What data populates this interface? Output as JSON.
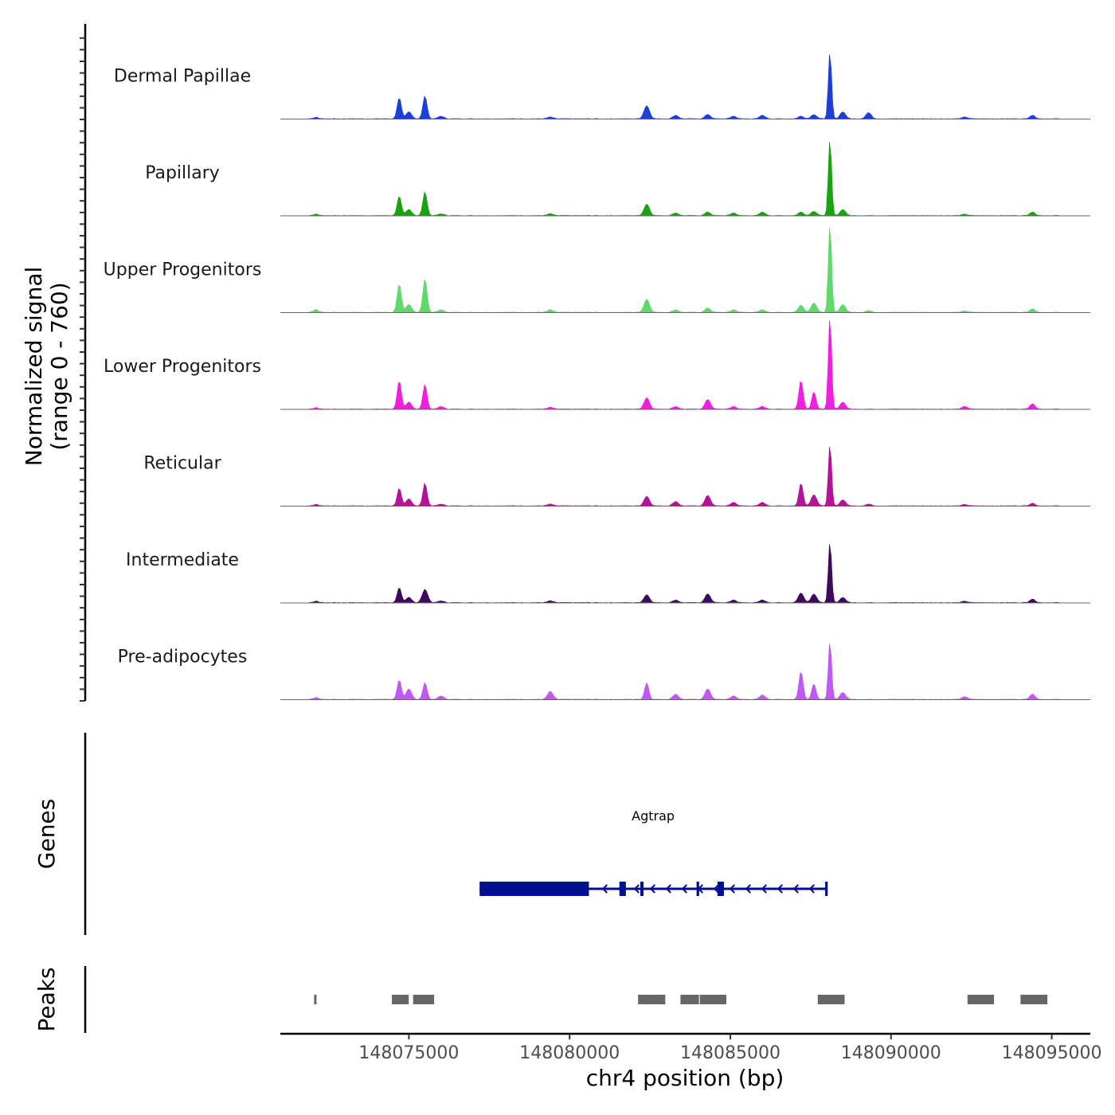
{
  "chart_data": {
    "type": "area",
    "title": "",
    "region": {
      "chromosome": "chr4",
      "start": 148071000,
      "end": 148096200
    },
    "signal_axis": {
      "label": "Normalized signal",
      "range_label": "(range 0 - 760)",
      "ylim": [
        0,
        760
      ]
    },
    "xlabel": "chr4 position (bp)",
    "x_ticks": [
      {
        "value": 148075000,
        "label": "148075000"
      },
      {
        "value": 148080000,
        "label": "148080000"
      },
      {
        "value": 148085000,
        "label": "148085000"
      },
      {
        "value": 148090000,
        "label": "148090000"
      },
      {
        "value": 148095000,
        "label": "148095000"
      }
    ],
    "peak_profile": [
      [
        148072100,
        0.015
      ],
      [
        148074700,
        0.2
      ],
      [
        148075000,
        0.06
      ],
      [
        148075500,
        0.25
      ],
      [
        148076000,
        0.03
      ],
      [
        148079400,
        0.02
      ],
      [
        148082400,
        0.13
      ],
      [
        148083300,
        0.02
      ],
      [
        148084300,
        0.03
      ],
      [
        148085100,
        0.02
      ],
      [
        148086000,
        0.03
      ],
      [
        148087200,
        0.05
      ],
      [
        148087600,
        0.04
      ],
      [
        148088100,
        1.0
      ],
      [
        148088500,
        0.06
      ],
      [
        148089300,
        0.07
      ],
      [
        148092300,
        0.015
      ],
      [
        148094400,
        0.03
      ]
    ],
    "series": [
      {
        "name": "Dermal Papillae",
        "color": "#1c3fd6",
        "values": [
          0.015,
          0.24,
          0.08,
          0.26,
          0.03,
          0.02,
          0.15,
          0.04,
          0.05,
          0.03,
          0.04,
          0.03,
          0.05,
          0.76,
          0.08,
          0.07,
          0.02,
          0.04
        ]
      },
      {
        "name": "Papillary",
        "color": "#19a313",
        "values": [
          0.015,
          0.22,
          0.07,
          0.27,
          0.02,
          0.02,
          0.13,
          0.03,
          0.04,
          0.03,
          0.04,
          0.04,
          0.05,
          0.87,
          0.07,
          0.0,
          0.015,
          0.04
        ]
      },
      {
        "name": "Upper Progenitors",
        "color": "#5ed96a",
        "values": [
          0.03,
          0.32,
          0.09,
          0.38,
          0.03,
          0.03,
          0.15,
          0.03,
          0.05,
          0.03,
          0.03,
          0.08,
          0.11,
          1.0,
          0.09,
          0.02,
          0.015,
          0.04
        ]
      },
      {
        "name": "Lower Progenitors",
        "color": "#f01fdf",
        "values": [
          0.015,
          0.32,
          0.08,
          0.28,
          0.03,
          0.02,
          0.13,
          0.03,
          0.11,
          0.03,
          0.03,
          0.33,
          0.2,
          1.05,
          0.08,
          0.0,
          0.03,
          0.06
        ]
      },
      {
        "name": "Reticular",
        "color": "#b2139b",
        "values": [
          0.015,
          0.2,
          0.08,
          0.26,
          0.02,
          0.02,
          0.11,
          0.05,
          0.12,
          0.04,
          0.04,
          0.26,
          0.13,
          0.7,
          0.07,
          0.02,
          0.015,
          0.03
        ]
      },
      {
        "name": "Intermediate",
        "color": "#3d0a5c",
        "values": [
          0.015,
          0.17,
          0.06,
          0.15,
          0.02,
          0.02,
          0.09,
          0.03,
          0.1,
          0.03,
          0.03,
          0.11,
          0.1,
          0.69,
          0.06,
          0.0,
          0.015,
          0.04
        ]
      },
      {
        "name": "Pre-adipocytes",
        "color": "#bf59f0",
        "values": [
          0.02,
          0.22,
          0.12,
          0.19,
          0.04,
          0.09,
          0.19,
          0.06,
          0.12,
          0.04,
          0.05,
          0.32,
          0.18,
          0.66,
          0.08,
          0.0,
          0.03,
          0.06
        ]
      }
    ],
    "genes_track": {
      "label": "Genes",
      "color": "#000f8f",
      "genes": [
        {
          "name": "Agtrap",
          "strand": "-",
          "start": 148077200,
          "end": 148088000,
          "utr_blocks": [
            [
              148077200,
              148080600
            ]
          ],
          "exons": [
            [
              148081550,
              148081750
            ],
            [
              148082200,
              148082300
            ],
            [
              148083950,
              148084030
            ],
            [
              148084600,
              148084800
            ],
            [
              148087950,
              148088030
            ]
          ]
        }
      ]
    },
    "peaks_track": {
      "label": "Peaks",
      "color": "#666666",
      "peaks": [
        [
          148072050,
          148072150
        ],
        [
          148074470,
          148075020
        ],
        [
          148075130,
          148075810
        ],
        [
          148082130,
          148083000
        ],
        [
          148083450,
          148084050
        ],
        [
          148084050,
          148084900
        ],
        [
          148087720,
          148088580
        ],
        [
          148092380,
          148093230
        ],
        [
          148094030,
          148094890
        ]
      ]
    }
  }
}
